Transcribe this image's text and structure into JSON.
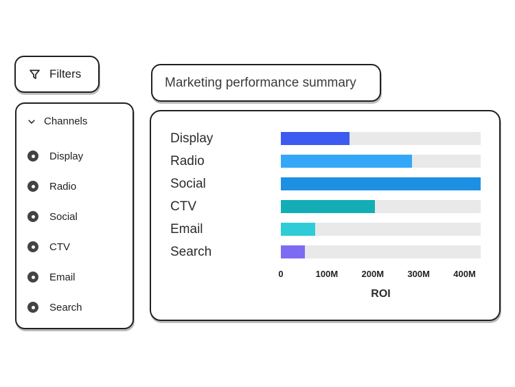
{
  "page": {
    "background": "#ffffff"
  },
  "filters_button": {
    "label": "Filters",
    "icon": "funnel-icon"
  },
  "channels_panel": {
    "header": {
      "label": "Channels",
      "icon": "chevron-down-icon",
      "expanded": true
    },
    "items": [
      {
        "label": "Display",
        "selected": true
      },
      {
        "label": "Radio",
        "selected": true
      },
      {
        "label": "Social",
        "selected": true
      },
      {
        "label": "CTV",
        "selected": true
      },
      {
        "label": "Email",
        "selected": true
      },
      {
        "label": "Search",
        "selected": true
      }
    ]
  },
  "summary_card": {
    "title": "Marketing performance summary"
  },
  "chart_data": {
    "type": "bar",
    "orientation": "horizontal",
    "title": "Marketing performance summary",
    "categories": [
      "Display",
      "Radio",
      "Social",
      "CTV",
      "Email",
      "Search"
    ],
    "values": [
      150,
      285,
      435,
      205,
      75,
      52
    ],
    "value_unit": "M",
    "xlabel": "ROI",
    "ylabel": "",
    "xlim": [
      0,
      435
    ],
    "x_ticks": [
      {
        "label": "0",
        "value": 0
      },
      {
        "label": "100M",
        "value": 100
      },
      {
        "label": "200M",
        "value": 200
      },
      {
        "label": "300M",
        "value": 300
      },
      {
        "label": "400M",
        "value": 400
      }
    ],
    "grid": false,
    "legend": false,
    "bar_colors": [
      "#3d5af1",
      "#35a7f9",
      "#1e90e3",
      "#13aeb5",
      "#2eccd6",
      "#7d6bf2"
    ],
    "track_color": "#e9e9e9"
  },
  "colors": {
    "card_border": "#1f1f1f",
    "text_dark": "#1e1e1e",
    "chart_label": "#2b2b2b",
    "radio_fill": "#434343"
  }
}
